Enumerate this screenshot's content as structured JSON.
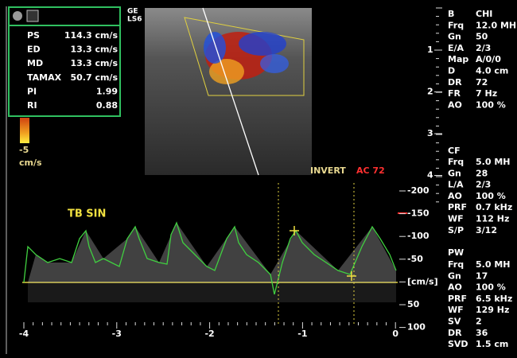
{
  "measurements": [
    {
      "label": "PS",
      "value": "114.3 cm/s"
    },
    {
      "label": "ED",
      "value": "13.3 cm/s"
    },
    {
      "label": "MD",
      "value": "13.3 cm/s"
    },
    {
      "label": "TAMAX",
      "value": "50.7 cm/s"
    },
    {
      "label": "PI",
      "value": "1.99"
    },
    {
      "label": "RI",
      "value": "0.88"
    }
  ],
  "color_scale": {
    "value": "-5",
    "unit": "cm/s"
  },
  "probe": [
    "GE",
    "LS6"
  ],
  "b_mode": {
    "params": [
      {
        "label": "B",
        "value": "CHI"
      },
      {
        "label": "Frq",
        "value": "12.0 MH"
      },
      {
        "label": "Gn",
        "value": "50"
      },
      {
        "label": "E/A",
        "value": "2/3"
      },
      {
        "label": "Map",
        "value": "A/0/0"
      },
      {
        "label": "D",
        "value": "4.0 cm"
      },
      {
        "label": "DR",
        "value": "72"
      },
      {
        "label": "FR",
        "value": "7 Hz"
      },
      {
        "label": "AO",
        "value": "100 %"
      }
    ]
  },
  "depth_scale": [
    "1",
    "2",
    "3",
    "4"
  ],
  "color_flow": {
    "title": "CF",
    "params": [
      {
        "label": "Frq",
        "value": "5.0 MH"
      },
      {
        "label": "Gn",
        "value": "28"
      },
      {
        "label": "L/A",
        "value": "2/3"
      },
      {
        "label": "AO",
        "value": "100 %"
      },
      {
        "label": "PRF",
        "value": "0.7 kHz"
      },
      {
        "label": "WF",
        "value": "112 Hz"
      },
      {
        "label": "S/P",
        "value": "3/12"
      }
    ]
  },
  "pulsed_wave": {
    "title": "PW",
    "params": [
      {
        "label": "Frq",
        "value": "5.0 MH"
      },
      {
        "label": "Gn",
        "value": "17"
      },
      {
        "label": "AO",
        "value": "100 %"
      },
      {
        "label": "PRF",
        "value": "6.5 kHz"
      },
      {
        "label": "WF",
        "value": "129 Hz"
      },
      {
        "label": "SV",
        "value": "2"
      },
      {
        "label": "DR",
        "value": "36"
      },
      {
        "label": "SVD",
        "value": "1.5 cm"
      }
    ]
  },
  "spectral": {
    "invert": "INVERT",
    "angle_correction": "AC 72",
    "vessel": "TB SIN",
    "velocity_scale": [
      "-200",
      "-150",
      "-100",
      "-50",
      "[cm/s]",
      "50",
      "100"
    ],
    "time_axis": [
      "-4",
      "-3",
      "-2",
      "-1",
      "0"
    ]
  }
}
